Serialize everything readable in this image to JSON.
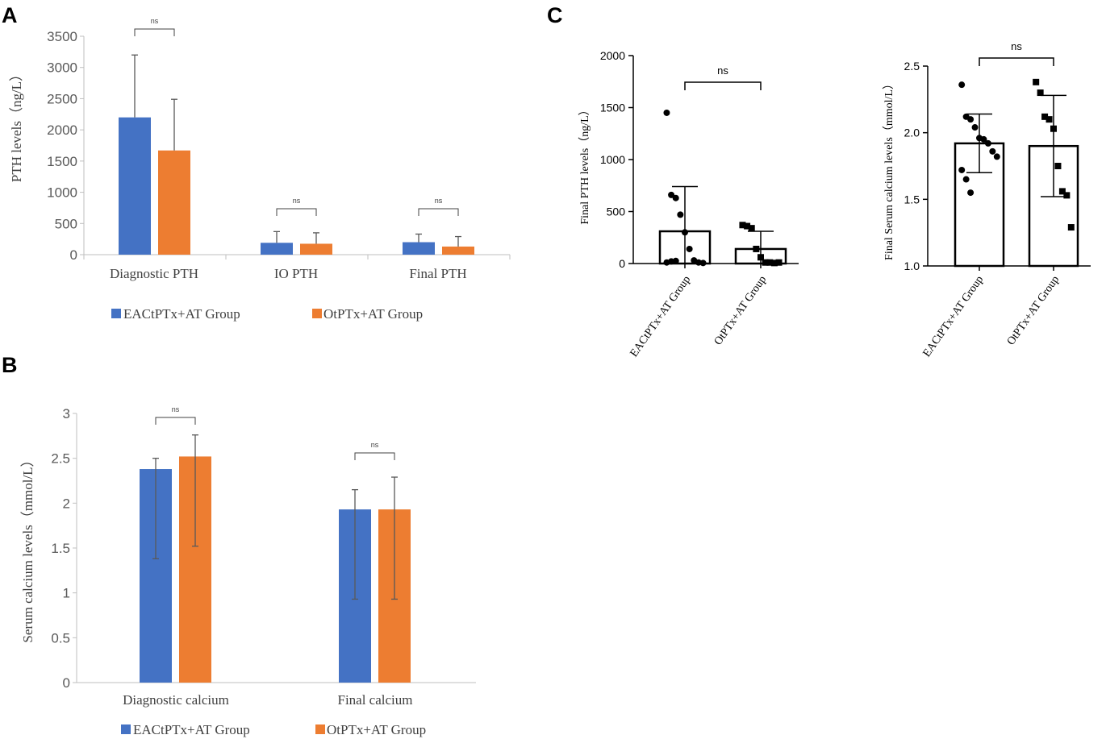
{
  "colors": {
    "blue": "#4472c4",
    "orange": "#ed7d31",
    "axis": "#000000",
    "tick_text": "#595959",
    "grid": "#d9d9d9"
  },
  "legend": {
    "group1": "EACtPTx+AT Group",
    "group2": "OtPTx+AT Group"
  },
  "chart_data": [
    {
      "panel": "A",
      "type": "bar",
      "categories": [
        "Diagnostic PTH",
        "IO PTH",
        "Final PTH"
      ],
      "series": [
        {
          "name": "EACtPTx+AT Group",
          "values": [
            2200,
            190,
            200
          ],
          "error": [
            1000,
            180,
            130
          ]
        },
        {
          "name": "OtPTx+AT Group",
          "values": [
            1670,
            175,
            130
          ],
          "error": [
            820,
            175,
            160
          ]
        }
      ],
      "ylabel": "PTH levels（ng/L）",
      "ylim": [
        0,
        3500
      ],
      "yticks": [
        "0",
        "500",
        "1000",
        "1500",
        "2000",
        "2500",
        "3000",
        "3500"
      ],
      "annotations": [
        "ns",
        "ns",
        "ns"
      ]
    },
    {
      "panel": "B",
      "type": "bar",
      "categories": [
        "Diagnostic calcium",
        "Final calcium"
      ],
      "series": [
        {
          "name": "EACtPTx+AT Group",
          "values": [
            2.38,
            1.93
          ],
          "error": [
            1.0,
            1.0
          ],
          "error_up": [
            0.12,
            0.22
          ]
        },
        {
          "name": "OtPTx+AT Group",
          "values": [
            2.52,
            1.93
          ],
          "error": [
            1.0,
            1.0
          ],
          "error_up": [
            0.24,
            0.36
          ]
        }
      ],
      "ylabel": "Serum calcium levels（mmol/L）",
      "ylim": [
        0,
        3
      ],
      "yticks": [
        "0",
        "0.5",
        "1",
        "1.5",
        "2",
        "2.5",
        "3"
      ],
      "annotations": [
        "ns",
        "ns"
      ]
    },
    {
      "panel": "C",
      "type": "bar",
      "subtitle": "left",
      "categories": [
        "EACtPTx+AT Group",
        "OtPTx+AT Group"
      ],
      "values": [
        310,
        140
      ],
      "error": [
        430,
        170
      ],
      "points": [
        [
          1450,
          660,
          630,
          470,
          300,
          140,
          30,
          10,
          5,
          10,
          20,
          25
        ],
        [
          370,
          360,
          340,
          140,
          60,
          10,
          10,
          5,
          10
        ]
      ],
      "ylabel": "Final PTH levels（ng/L）",
      "ylim": [
        0,
        2000
      ],
      "yticks": [
        "0",
        "500",
        "1000",
        "1500",
        "2000"
      ],
      "annotations": [
        "ns"
      ]
    },
    {
      "panel": "C",
      "type": "bar",
      "subtitle": "right",
      "categories": [
        "EACtPTx+AT Group",
        "OtPTx+AT Group"
      ],
      "values": [
        1.92,
        1.9
      ],
      "error": [
        0.22,
        0.38
      ],
      "points": [
        [
          2.36,
          2.12,
          2.1,
          2.04,
          1.96,
          1.95,
          1.92,
          1.86,
          1.82,
          1.72,
          1.65,
          1.55
        ],
        [
          2.38,
          2.3,
          2.12,
          2.1,
          2.03,
          1.75,
          1.56,
          1.53,
          1.29
        ]
      ],
      "ylabel": "Final Serum calcium levels（mmol/L）",
      "ylim": [
        1.0,
        2.5
      ],
      "yticks": [
        "1.0",
        "1.5",
        "2.0",
        "2.5"
      ],
      "annotations": [
        "ns"
      ]
    }
  ],
  "panel_labels": [
    "A",
    "B",
    "C"
  ]
}
